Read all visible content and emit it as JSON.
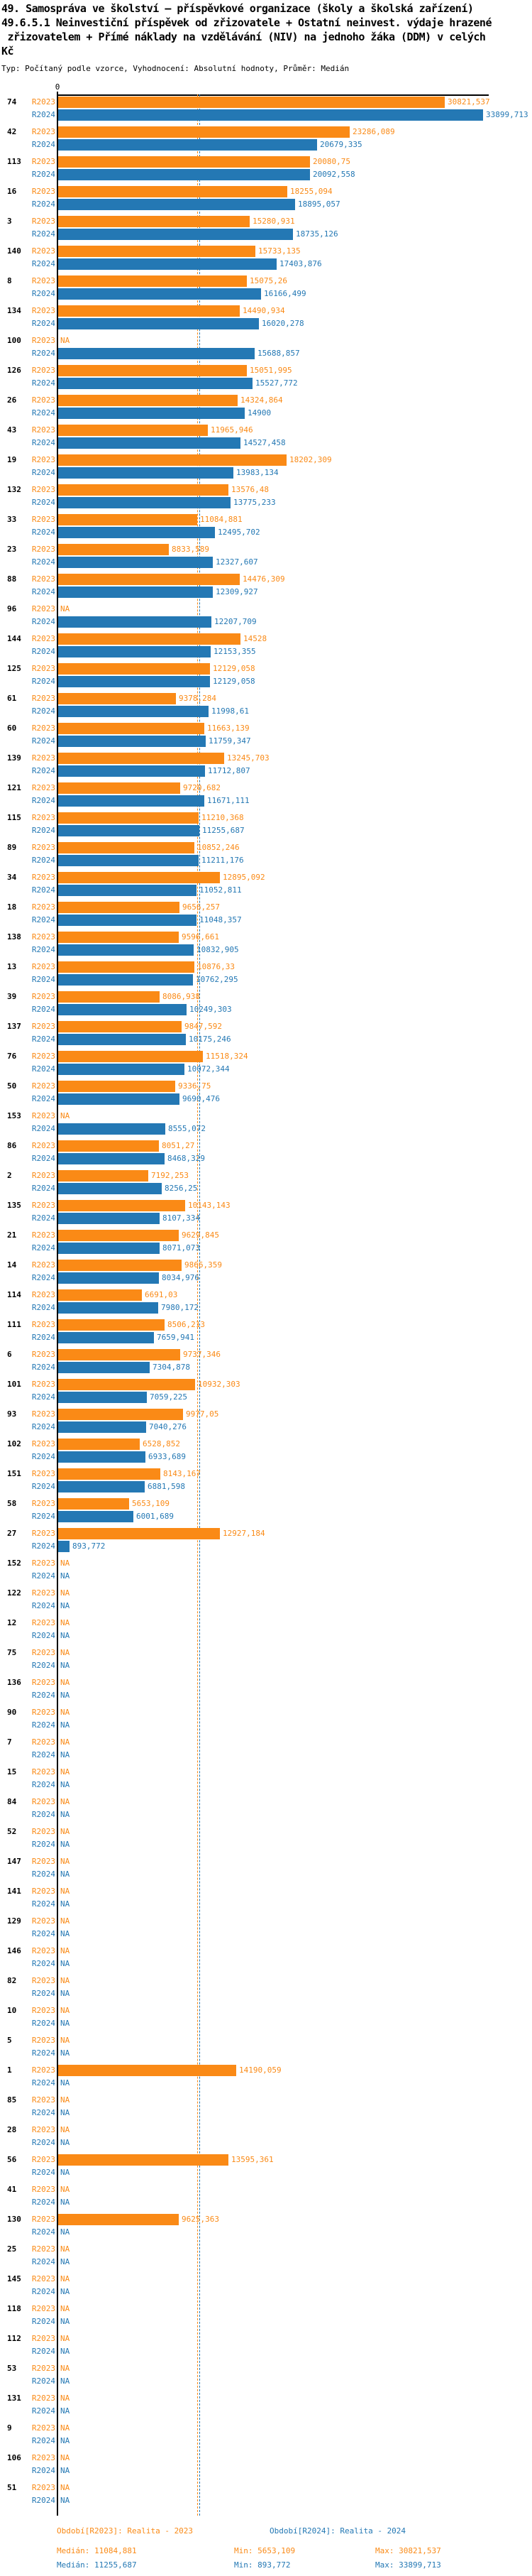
{
  "title": {
    "lines": [
      "49. Samospráva ve školství – příspěvkové organizace (školy a školská zařízení)",
      "49.6.5.1 Neinvestiční příspěvek od zřizovatele + Ostatní neinvest. výdaje hrazené",
      " zřizovatelem + Přímé náklady na vzdělávání (NIV) na jednoho žáka (DDM) v celých",
      "Kč"
    ],
    "subtitle": "Typ: Počítaný podle vzorce, Vyhodnocení: Absolutní hodnoty, Průměr: Medián"
  },
  "axis": {
    "zero_tick": "0"
  },
  "colors": {
    "r2023": "#FA8A16",
    "r2024": "#2478B4",
    "axis": "#000000"
  },
  "series_meta": [
    {
      "key": "r2023",
      "label": "R2023",
      "color": "#FA8A16",
      "period": "Období[R2023]: Realita - 2023",
      "median": "Medián: 11084,881",
      "min": "Min: 5653,109",
      "max": "Max: 30821,537",
      "median_value": 11084.881
    },
    {
      "key": "r2024",
      "label": "R2024",
      "color": "#2478B4",
      "period": "Období[R2024]: Realita - 2024",
      "median": "Medián: 11255,687",
      "min": "Min: 893,772",
      "max": "Max: 33899,713",
      "median_value": 11255.687
    }
  ],
  "chart_data": {
    "type": "bar",
    "orientation": "horizontal",
    "title": "49.6.5.1 Neinvestiční příspěvek od zřizovatele + Ostatní neinvest. výdaje hrazené zřizovatelem + Přímé náklady na vzdělávání (NIV) na jednoho žáka (DDM) v celých Kč",
    "value_note": "decimal comma formatting, NA = missing",
    "xlim": [
      0,
      34400
    ],
    "bar_scale_max": 33899.713,
    "grid": false,
    "legend_position": "bottom",
    "series_names": [
      "R2023",
      "R2024"
    ],
    "medians": {
      "R2023": 11084.881,
      "R2024": 11255.687
    },
    "rows": [
      [
        "74",
        "30821,537",
        "33899,713"
      ],
      [
        "42",
        "23286,089",
        "20679,335"
      ],
      [
        "113",
        "20080,75",
        "20092,558"
      ],
      [
        "16",
        "18255,094",
        "18895,057"
      ],
      [
        "3",
        "15280,931",
        "18735,126"
      ],
      [
        "140",
        "15733,135",
        "17403,876"
      ],
      [
        "8",
        "15075,26",
        "16166,499"
      ],
      [
        "134",
        "14490,934",
        "16020,278"
      ],
      [
        "100",
        "NA",
        "15688,857"
      ],
      [
        "126",
        "15051,995",
        "15527,772"
      ],
      [
        "26",
        "14324,864",
        "14900"
      ],
      [
        "43",
        "11965,946",
        "14527,458"
      ],
      [
        "19",
        "18202,309",
        "13983,134"
      ],
      [
        "132",
        "13576,48",
        "13775,233"
      ],
      [
        "33",
        "11084,881",
        "12495,702"
      ],
      [
        "23",
        "8833,589",
        "12327,607"
      ],
      [
        "88",
        "14476,309",
        "12309,927"
      ],
      [
        "96",
        "NA",
        "12207,709"
      ],
      [
        "144",
        "14528",
        "12153,355"
      ],
      [
        "125",
        "12129,058",
        "12129,058"
      ],
      [
        "61",
        "9378,284",
        "11998,61"
      ],
      [
        "60",
        "11663,139",
        "11759,347"
      ],
      [
        "139",
        "13245,703",
        "11712,807"
      ],
      [
        "121",
        "9720,682",
        "11671,111"
      ],
      [
        "115",
        "11210,368",
        "11255,687"
      ],
      [
        "89",
        "10852,246",
        "11211,176"
      ],
      [
        "34",
        "12895,092",
        "11052,811"
      ],
      [
        "18",
        "9656,257",
        "11048,357"
      ],
      [
        "138",
        "9596,661",
        "10832,905"
      ],
      [
        "13",
        "10876,33",
        "10762,295"
      ],
      [
        "39",
        "8086,938",
        "10249,303"
      ],
      [
        "137",
        "9847,592",
        "10175,246"
      ],
      [
        "76",
        "11518,324",
        "10072,344"
      ],
      [
        "50",
        "9336,75",
        "9690,476"
      ],
      [
        "153",
        "NA",
        "8555,072"
      ],
      [
        "86",
        "8051,27",
        "8468,329"
      ],
      [
        "2",
        "7192,253",
        "8256,25"
      ],
      [
        "135",
        "10143,143",
        "8107,334"
      ],
      [
        "21",
        "9629,845",
        "8071,073"
      ],
      [
        "14",
        "9866,359",
        "8034,976"
      ],
      [
        "114",
        "6691,03",
        "7980,172"
      ],
      [
        "111",
        "8506,213",
        "7659,941"
      ],
      [
        "6",
        "9737,346",
        "7304,878"
      ],
      [
        "101",
        "10932,303",
        "7059,225"
      ],
      [
        "93",
        "9977,05",
        "7040,276"
      ],
      [
        "102",
        "6528,852",
        "6933,689"
      ],
      [
        "151",
        "8143,167",
        "6881,598"
      ],
      [
        "58",
        "5653,109",
        "6001,689"
      ],
      [
        "27",
        "12927,184",
        "893,772"
      ],
      [
        "152",
        "NA",
        "NA"
      ],
      [
        "122",
        "NA",
        "NA"
      ],
      [
        "12",
        "NA",
        "NA"
      ],
      [
        "75",
        "NA",
        "NA"
      ],
      [
        "136",
        "NA",
        "NA"
      ],
      [
        "90",
        "NA",
        "NA"
      ],
      [
        "7",
        "NA",
        "NA"
      ],
      [
        "15",
        "NA",
        "NA"
      ],
      [
        "84",
        "NA",
        "NA"
      ],
      [
        "52",
        "NA",
        "NA"
      ],
      [
        "147",
        "NA",
        "NA"
      ],
      [
        "141",
        "NA",
        "NA"
      ],
      [
        "129",
        "NA",
        "NA"
      ],
      [
        "146",
        "NA",
        "NA"
      ],
      [
        "82",
        "NA",
        "NA"
      ],
      [
        "10",
        "NA",
        "NA"
      ],
      [
        "5",
        "NA",
        "NA"
      ],
      [
        "1",
        "14190,059",
        "NA"
      ],
      [
        "85",
        "NA",
        "NA"
      ],
      [
        "28",
        "NA",
        "NA"
      ],
      [
        "56",
        "13595,361",
        "NA"
      ],
      [
        "41",
        "NA",
        "NA"
      ],
      [
        "130",
        "9625,363",
        "NA"
      ],
      [
        "25",
        "NA",
        "NA"
      ],
      [
        "145",
        "NA",
        "NA"
      ],
      [
        "118",
        "NA",
        "NA"
      ],
      [
        "112",
        "NA",
        "NA"
      ],
      [
        "53",
        "NA",
        "NA"
      ],
      [
        "131",
        "NA",
        "NA"
      ],
      [
        "9",
        "NA",
        "NA"
      ],
      [
        "106",
        "NA",
        "NA"
      ],
      [
        "51",
        "NA",
        "NA"
      ]
    ]
  },
  "legend": {
    "r2023_period": "Období[R2023]: Realita - 2023",
    "r2024_period": "Období[R2024]: Realita - 2024",
    "r2023_median": "Medián: 11084,881",
    "r2023_min": "Min: 5653,109",
    "r2023_max": "Max: 30821,537",
    "r2024_median": "Medián: 11255,687",
    "r2024_min": "Min: 893,772",
    "r2024_max": "Max: 33899,713"
  }
}
